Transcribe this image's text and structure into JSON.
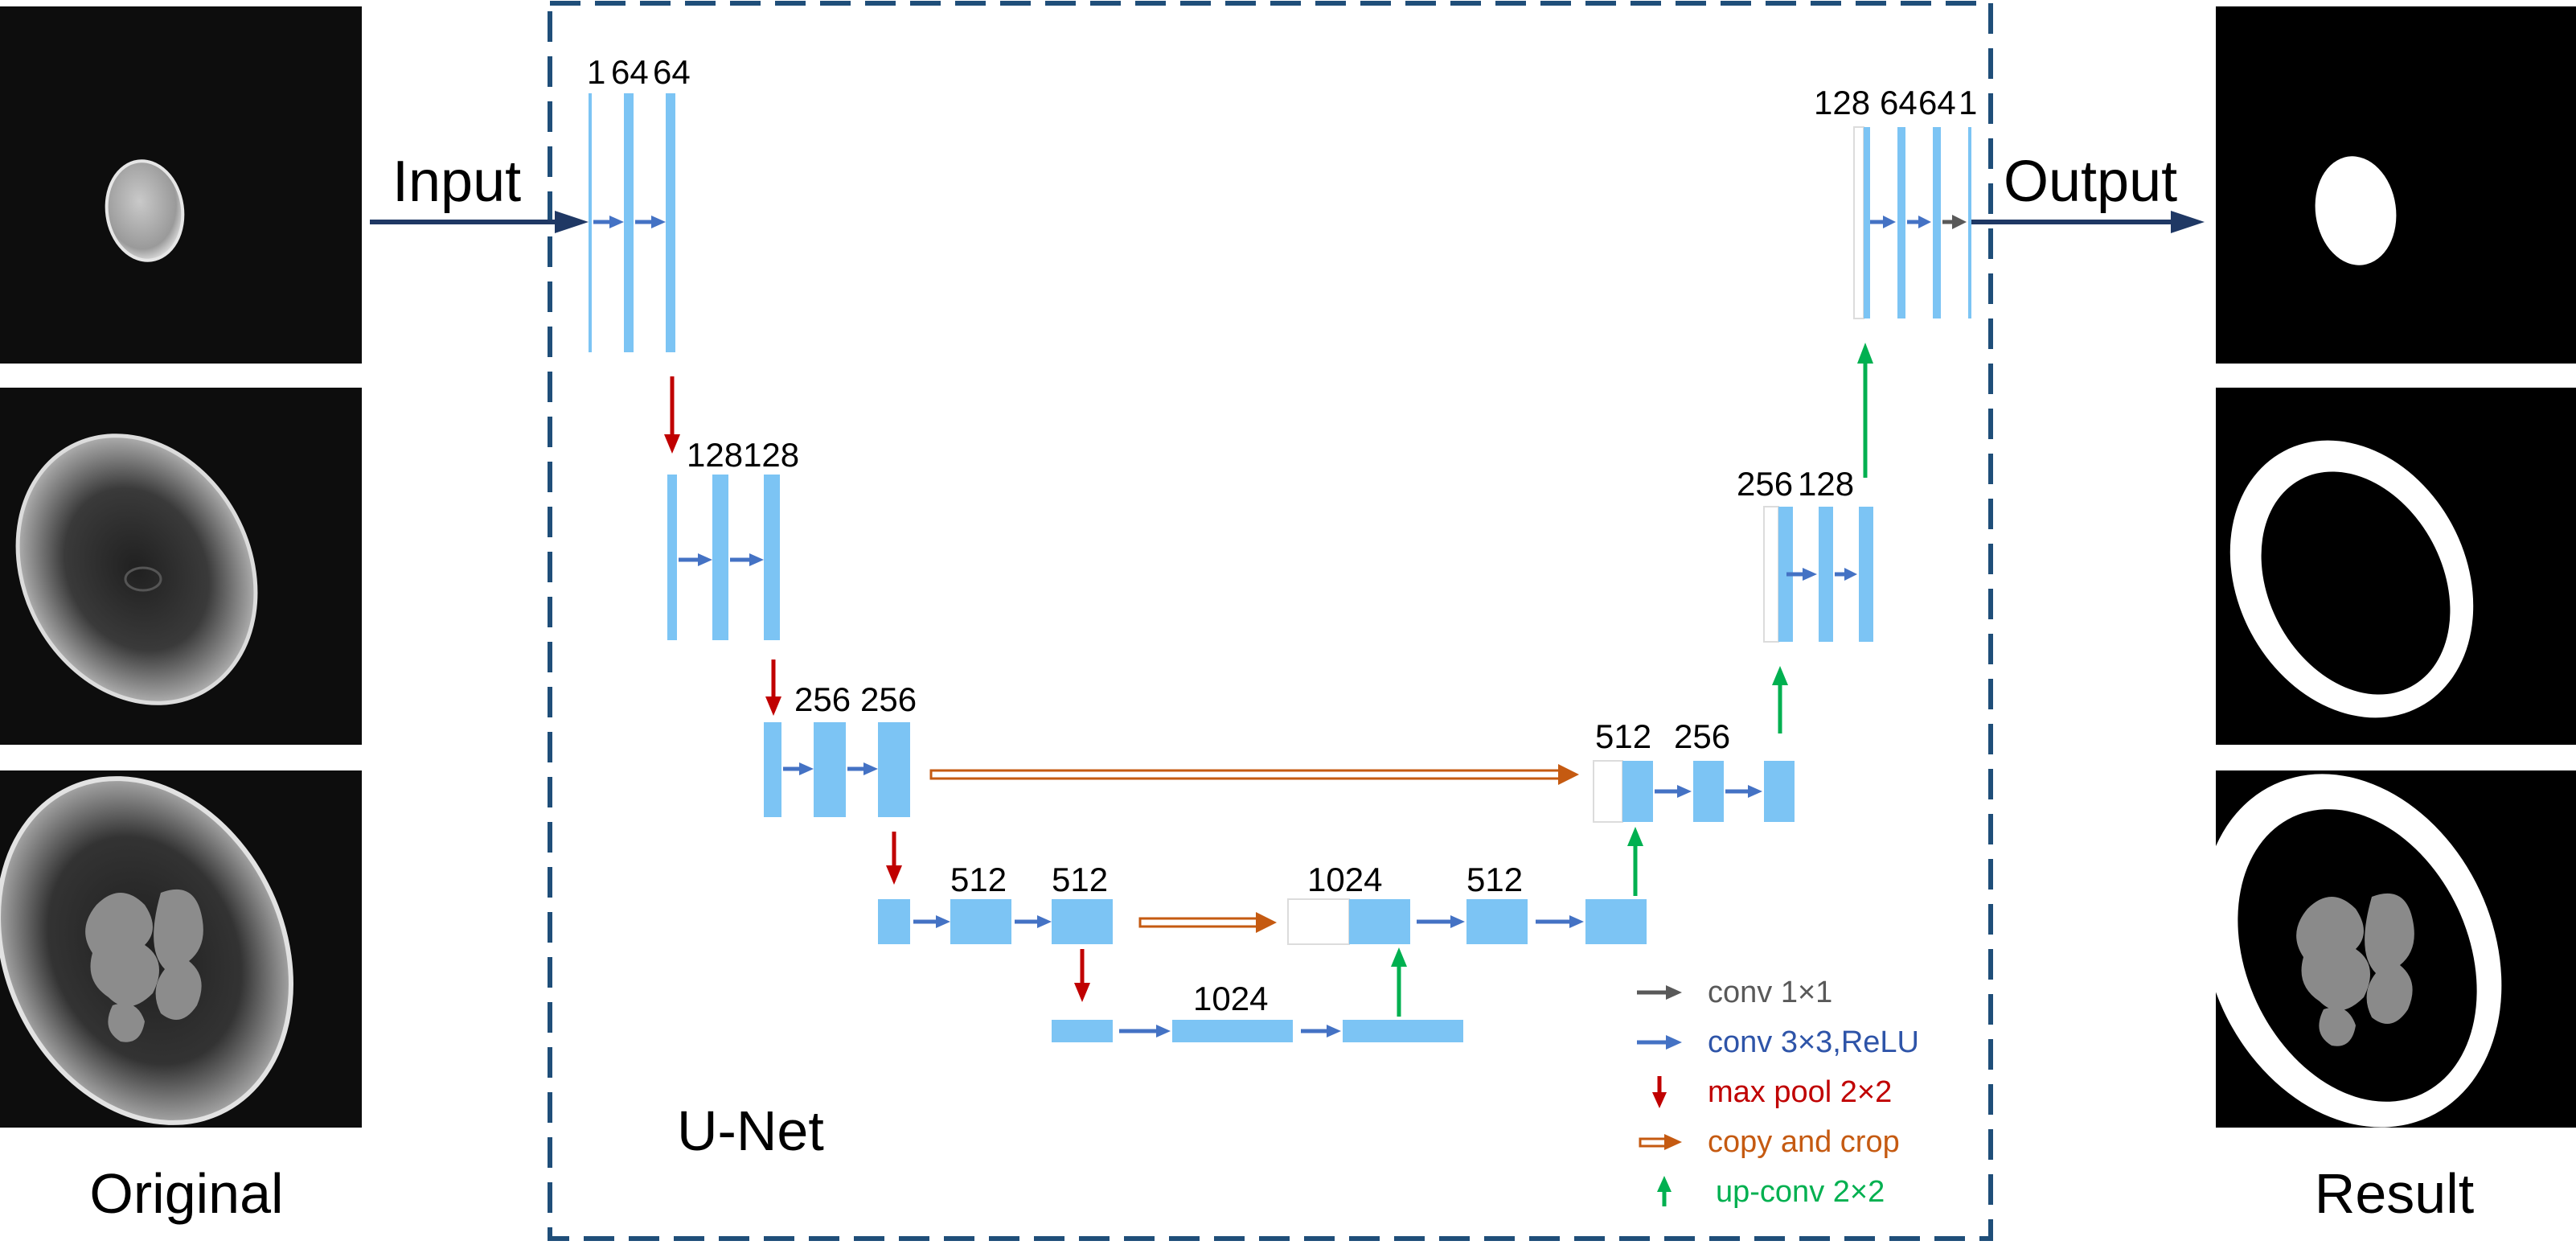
{
  "labels": {
    "input": "Input",
    "output": "Output",
    "original": "Original",
    "result": "Result",
    "network": "U-Net"
  },
  "channels": {
    "enc1": [
      "1",
      "64",
      "64"
    ],
    "enc2": "128128",
    "enc3": [
      "256",
      "256"
    ],
    "enc4": [
      "512",
      "512"
    ],
    "bottom": "1024",
    "up4": "1024",
    "dec4": "512",
    "up3": "512",
    "dec3": "256",
    "dec2": [
      "256",
      "128"
    ],
    "dec1": [
      "128",
      "64",
      "64",
      "1"
    ]
  },
  "legend": {
    "conv1x1": "conv 1×1",
    "conv3x3": "conv 3×3,ReLU",
    "maxpool": "max pool 2×2",
    "copycrop": "copy and crop",
    "upconv": "up-conv 2×2"
  },
  "colors": {
    "feature_map": "#7cc4f4",
    "conv_arrow": "#4472c4",
    "pool_arrow": "#c00000",
    "copy_arrow": "#c55a11",
    "upconv_arrow": "#00b050",
    "conv1x1_arrow": "#595959",
    "frame": "#1f4e79",
    "io_arrow": "#1f3864",
    "conv1x1_text": "#595959",
    "conv3x3_text": "#2e54a8",
    "maxpool_text": "#c00000",
    "copycrop_text": "#c55a11",
    "upconv_text": "#00b050"
  }
}
